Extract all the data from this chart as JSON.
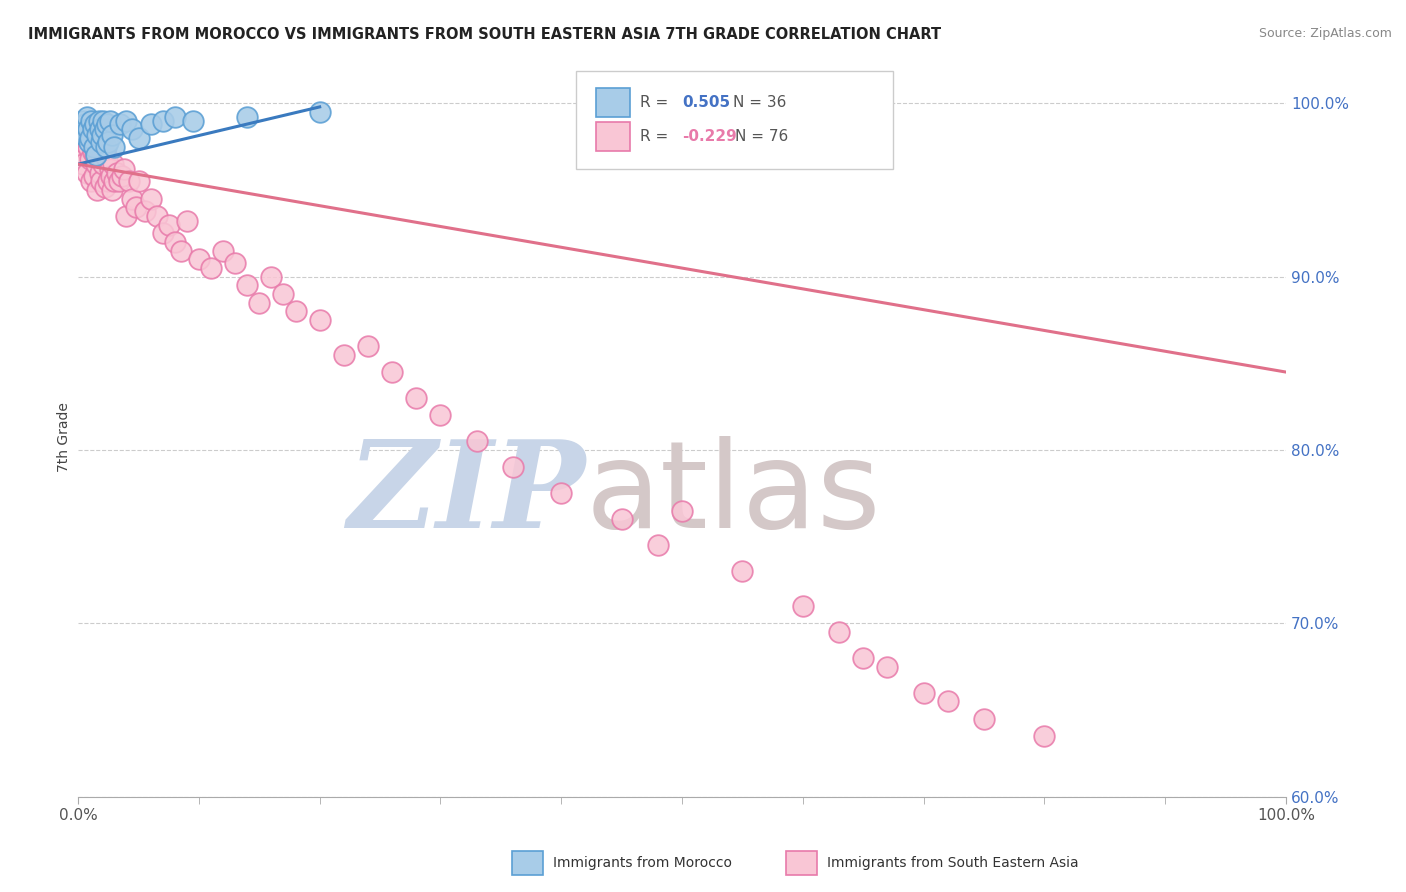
{
  "title": "IMMIGRANTS FROM MOROCCO VS IMMIGRANTS FROM SOUTH EASTERN ASIA 7TH GRADE CORRELATION CHART",
  "source": "Source: ZipAtlas.com",
  "ylabel": "7th Grade",
  "blue_label": "Immigrants from Morocco",
  "pink_label": "Immigrants from South Eastern Asia",
  "blue_R": "0.505",
  "blue_N": "36",
  "pink_R": "-0.229",
  "pink_N": "76",
  "blue_color": "#a8cce8",
  "blue_edge": "#5b9fd4",
  "pink_color": "#f9c6d5",
  "pink_edge": "#e87aaa",
  "blue_line_color": "#3a7abf",
  "pink_line_color": "#e0708a",
  "watermark_zip": "ZIP",
  "watermark_atlas": "atlas",
  "watermark_zip_color": "#c8d5e8",
  "watermark_atlas_color": "#d4c8c8",
  "grid_color": "#cccccc",
  "bg_color": "#ffffff",
  "blue_x": [
    0.3,
    0.4,
    0.5,
    0.6,
    0.7,
    0.8,
    0.9,
    1.0,
    1.1,
    1.2,
    1.3,
    1.4,
    1.5,
    1.6,
    1.7,
    1.8,
    1.9,
    2.0,
    2.1,
    2.2,
    2.3,
    2.4,
    2.5,
    2.6,
    2.8,
    3.0,
    3.5,
    4.0,
    4.5,
    5.0,
    6.0,
    7.0,
    8.0,
    9.5,
    14.0,
    20.0
  ],
  "blue_y": [
    98.5,
    99.0,
    98.2,
    98.8,
    99.2,
    98.5,
    97.8,
    98.0,
    99.0,
    98.5,
    97.5,
    98.8,
    97.0,
    98.2,
    99.0,
    98.5,
    97.8,
    98.2,
    99.0,
    98.5,
    97.5,
    98.8,
    97.8,
    99.0,
    98.2,
    97.5,
    98.8,
    99.0,
    98.5,
    98.0,
    98.8,
    99.0,
    99.2,
    99.0,
    99.2,
    99.5
  ],
  "pink_x": [
    0.2,
    0.3,
    0.4,
    0.5,
    0.6,
    0.7,
    0.8,
    0.9,
    1.0,
    1.1,
    1.2,
    1.3,
    1.4,
    1.5,
    1.6,
    1.7,
    1.8,
    1.9,
    2.0,
    2.1,
    2.2,
    2.3,
    2.4,
    2.5,
    2.6,
    2.7,
    2.8,
    2.9,
    3.0,
    3.2,
    3.4,
    3.6,
    3.8,
    4.0,
    4.2,
    4.5,
    4.8,
    5.0,
    5.5,
    6.0,
    6.5,
    7.0,
    7.5,
    8.0,
    8.5,
    9.0,
    10.0,
    11.0,
    12.0,
    13.0,
    14.0,
    15.0,
    16.0,
    17.0,
    18.0,
    20.0,
    22.0,
    24.0,
    26.0,
    28.0,
    30.0,
    33.0,
    36.0,
    40.0,
    45.0,
    48.0,
    50.0,
    55.0,
    60.0,
    63.0,
    65.0,
    67.0,
    70.0,
    72.0,
    75.0,
    80.0
  ],
  "pink_y": [
    97.5,
    98.5,
    96.5,
    97.8,
    98.0,
    96.0,
    97.5,
    98.2,
    96.8,
    95.5,
    97.2,
    95.8,
    97.0,
    96.5,
    95.0,
    97.5,
    96.0,
    95.5,
    97.8,
    96.5,
    95.2,
    97.0,
    96.8,
    95.5,
    96.2,
    95.8,
    95.0,
    96.5,
    95.5,
    96.0,
    95.5,
    95.8,
    96.2,
    93.5,
    95.5,
    94.5,
    94.0,
    95.5,
    93.8,
    94.5,
    93.5,
    92.5,
    93.0,
    92.0,
    91.5,
    93.2,
    91.0,
    90.5,
    91.5,
    90.8,
    89.5,
    88.5,
    90.0,
    89.0,
    88.0,
    87.5,
    85.5,
    86.0,
    84.5,
    83.0,
    82.0,
    80.5,
    79.0,
    77.5,
    76.0,
    74.5,
    76.5,
    73.0,
    71.0,
    69.5,
    68.0,
    67.5,
    66.0,
    65.5,
    64.5,
    63.5
  ],
  "blue_line_x0": 0.0,
  "blue_line_x1": 20.0,
  "blue_line_y0": 96.5,
  "blue_line_y1": 99.8,
  "pink_line_x0": 0.0,
  "pink_line_x1": 100.0,
  "pink_line_y0": 96.5,
  "pink_line_y1": 84.5,
  "xlim": [
    0,
    100
  ],
  "ylim": [
    60,
    101.5
  ],
  "yticks": [
    60,
    70,
    80,
    90,
    100
  ],
  "ytick_labels": [
    "60.0%",
    "70.0%",
    "80.0%",
    "90.0%",
    "100.0%"
  ],
  "xtick_labels": [
    "0.0%",
    "100.0%"
  ]
}
